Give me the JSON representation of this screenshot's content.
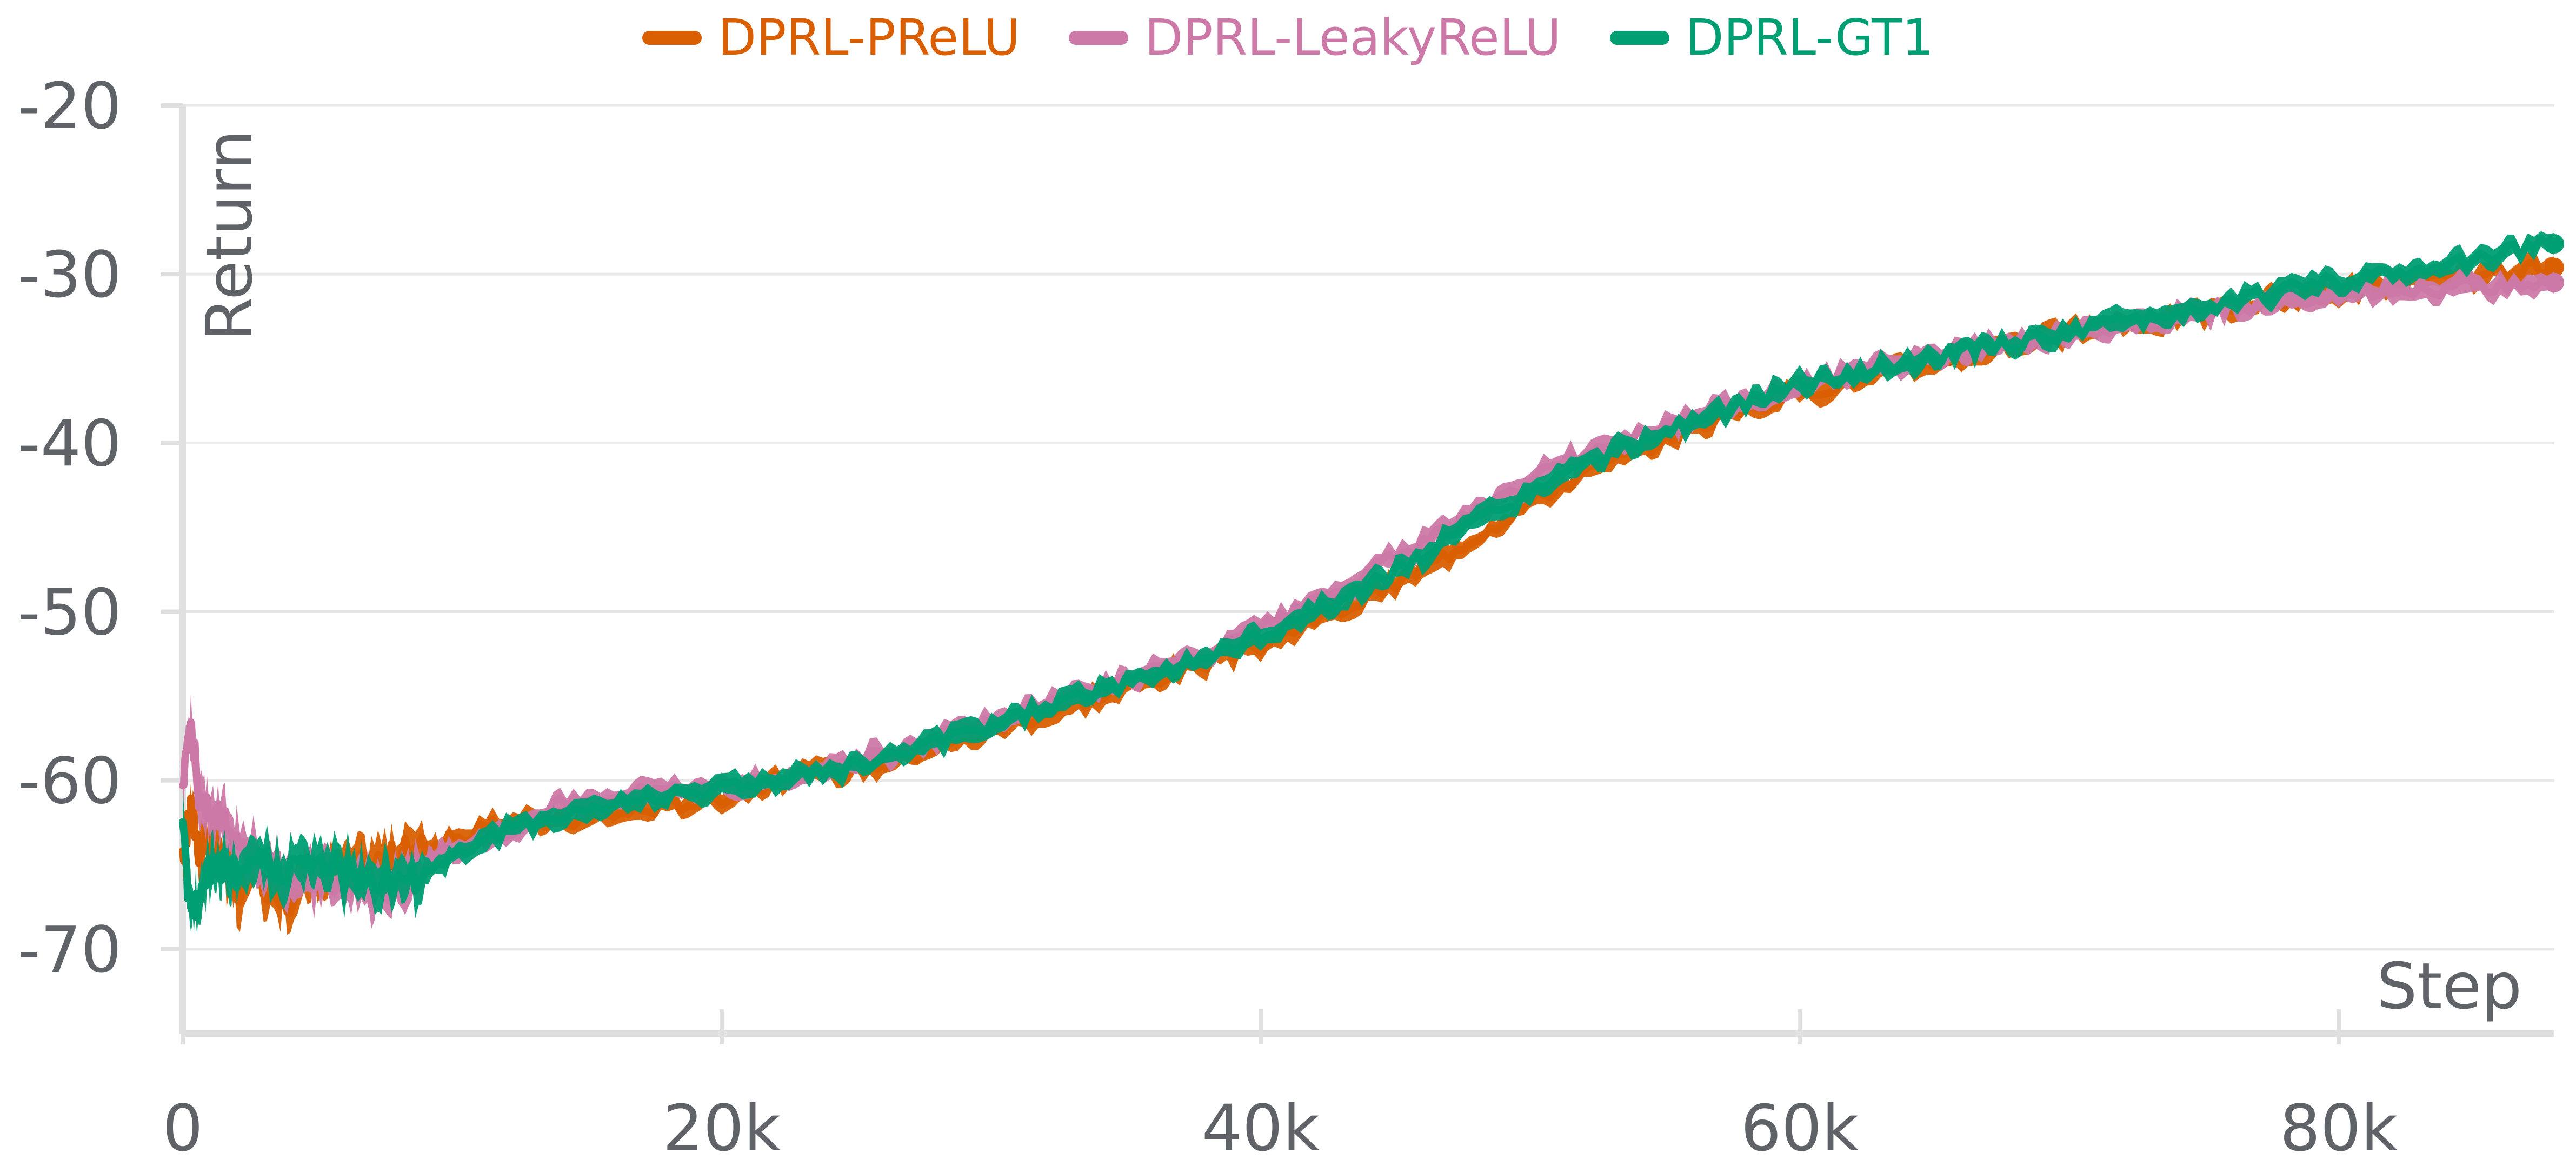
{
  "chart_data": {
    "type": "line",
    "title": "",
    "xlabel": "Step",
    "ylabel": "Return",
    "xlim": [
      0,
      88000
    ],
    "ylim": [
      -75,
      -20
    ],
    "x_ticks": [
      0,
      20000,
      40000,
      60000,
      80000
    ],
    "x_tick_labels": [
      "0",
      "20k",
      "40k",
      "60k",
      "80k"
    ],
    "y_ticks": [
      -20,
      -30,
      -40,
      -50,
      -60,
      -70
    ],
    "y_tick_labels": [
      "-20",
      "-30",
      "-40",
      "-50",
      "-60",
      "-70"
    ],
    "grid": true,
    "legend_position": "top-center",
    "x": [
      0,
      300,
      600,
      1000,
      1500,
      2000,
      3000,
      4000,
      5000,
      6000,
      7000,
      8000,
      9000,
      10000,
      12000,
      14000,
      16000,
      18000,
      20000,
      22000,
      24000,
      26000,
      28000,
      30000,
      32000,
      34000,
      36000,
      38000,
      40000,
      42000,
      44000,
      46000,
      48000,
      50000,
      52000,
      54000,
      56000,
      58000,
      60000,
      62000,
      64000,
      66000,
      68000,
      70000,
      72000,
      74000,
      76000,
      78000,
      80000,
      82000,
      84000,
      86000,
      88000
    ],
    "series": [
      {
        "name": "DPRL-PReLU",
        "color": "#d95f02",
        "band_width": 1.3,
        "values": [
          -65,
          -61.5,
          -64,
          -63.5,
          -65,
          -66.5,
          -66,
          -67,
          -65.5,
          -65.5,
          -65,
          -64.5,
          -64,
          -63.5,
          -62.5,
          -62.5,
          -62,
          -61.5,
          -61,
          -60,
          -59.5,
          -59,
          -58,
          -57,
          -56,
          -55,
          -54,
          -53,
          -52,
          -50.5,
          -49.2,
          -47.5,
          -45.5,
          -43.5,
          -41.8,
          -40.5,
          -39,
          -38,
          -37,
          -36.3,
          -35.5,
          -34.8,
          -34,
          -33.5,
          -33,
          -32.5,
          -32,
          -31.5,
          -31,
          -30.7,
          -30.3,
          -30,
          -29.6
        ]
      },
      {
        "name": "DPRL-LeakyReLU",
        "color": "#cc79a7",
        "band_width": 1.3,
        "values": [
          -60,
          -56,
          -61,
          -61.5,
          -62.5,
          -63.5,
          -65,
          -65.5,
          -66,
          -66,
          -66.5,
          -66,
          -65,
          -64,
          -63,
          -61.5,
          -61,
          -60.5,
          -60.5,
          -60,
          -59,
          -58.5,
          -57.5,
          -56.5,
          -55.5,
          -54.5,
          -53.5,
          -52.5,
          -51,
          -49.5,
          -47.7,
          -46,
          -44.2,
          -42.3,
          -40.6,
          -39.5,
          -38.5,
          -37.5,
          -36.5,
          -35.8,
          -35.2,
          -34.5,
          -34,
          -33.5,
          -33,
          -32.5,
          -32,
          -31.6,
          -31.2,
          -31,
          -30.8,
          -30.6,
          -30.5
        ]
      },
      {
        "name": "DPRL-GT1",
        "color": "#009e73",
        "band_width": 1.3,
        "values": [
          -63,
          -68,
          -67,
          -65.5,
          -65,
          -65.5,
          -65,
          -65.5,
          -65,
          -65.5,
          -66,
          -66,
          -65.5,
          -64.5,
          -63,
          -62,
          -61.5,
          -60.8,
          -60.5,
          -60,
          -59.5,
          -58.8,
          -57.8,
          -56.8,
          -55.7,
          -54.7,
          -53.7,
          -52.7,
          -51.5,
          -50,
          -48.5,
          -46.7,
          -44.7,
          -43,
          -41.4,
          -40,
          -38.8,
          -37.7,
          -36.5,
          -35.8,
          -35.3,
          -34.5,
          -34,
          -33.5,
          -32.8,
          -32.3,
          -31.6,
          -31,
          -30.4,
          -29.9,
          -29.4,
          -28.8,
          -28.2
        ]
      }
    ]
  }
}
